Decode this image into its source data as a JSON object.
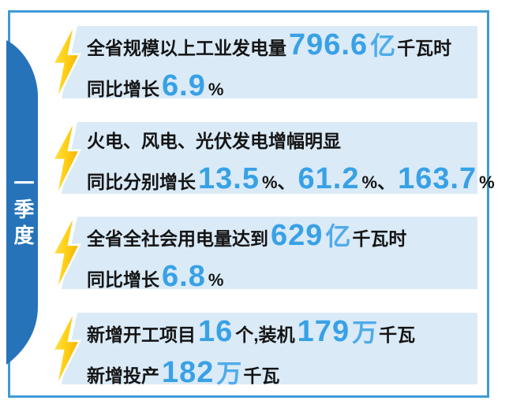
{
  "ribbon": {
    "label": "一季度"
  },
  "cards": [
    {
      "lines": [
        [
          {
            "text": "全省规模以上工业发电量",
            "style": "cn"
          },
          {
            "text": "796.6",
            "style": "num"
          },
          {
            "text": "亿",
            "style": "unit"
          },
          {
            "text": "千瓦时",
            "style": "cn"
          }
        ],
        [
          {
            "text": "同比增长",
            "style": "cn"
          },
          {
            "text": "6.9",
            "style": "num"
          },
          {
            "text": "%",
            "style": "pct"
          }
        ]
      ]
    },
    {
      "lines": [
        [
          {
            "text": "火电、风电、光伏发电增幅明显",
            "style": "cn"
          }
        ],
        [
          {
            "text": "同比分别增长",
            "style": "cn"
          },
          {
            "text": "13.5",
            "style": "num"
          },
          {
            "text": "%",
            "style": "pct"
          },
          {
            "text": "、",
            "style": "cn"
          },
          {
            "text": "61.2",
            "style": "num"
          },
          {
            "text": "%",
            "style": "pct"
          },
          {
            "text": "、",
            "style": "cn"
          },
          {
            "text": "163.7",
            "style": "num"
          },
          {
            "text": "%",
            "style": "pct"
          }
        ]
      ]
    },
    {
      "lines": [
        [
          {
            "text": "全省全社会用电量达到",
            "style": "cn"
          },
          {
            "text": "629",
            "style": "num"
          },
          {
            "text": "亿",
            "style": "unit"
          },
          {
            "text": "千瓦时",
            "style": "cn"
          }
        ],
        [
          {
            "text": "同比增长",
            "style": "cn"
          },
          {
            "text": "6.8",
            "style": "num"
          },
          {
            "text": "%",
            "style": "pct"
          }
        ]
      ]
    },
    {
      "lines": [
        [
          {
            "text": "新增开工项目",
            "style": "cn"
          },
          {
            "text": "16",
            "style": "num"
          },
          {
            "text": "个,装机",
            "style": "cn"
          },
          {
            "text": "179",
            "style": "num"
          },
          {
            "text": "万",
            "style": "unit"
          },
          {
            "text": "千瓦",
            "style": "cn"
          }
        ],
        [
          {
            "text": "新增投产",
            "style": "cn"
          },
          {
            "text": "182",
            "style": "num"
          },
          {
            "text": "万",
            "style": "unit"
          },
          {
            "text": "千瓦",
            "style": "cn"
          }
        ]
      ]
    }
  ],
  "icons": {
    "bolt": "lightning-bolt-icon"
  },
  "colors": {
    "frame_border": "#3D9BD7",
    "ribbon_blue": "#2673BA",
    "card_background": "#DAEAF7",
    "number_blue": "#38A1E6",
    "unit_blue": "#4FACE9",
    "text_black": "#141414",
    "bolt_yellow_light": "#FFE45C",
    "bolt_yellow": "#FFD117",
    "bolt_yellow_deep": "#F5B40C"
  }
}
